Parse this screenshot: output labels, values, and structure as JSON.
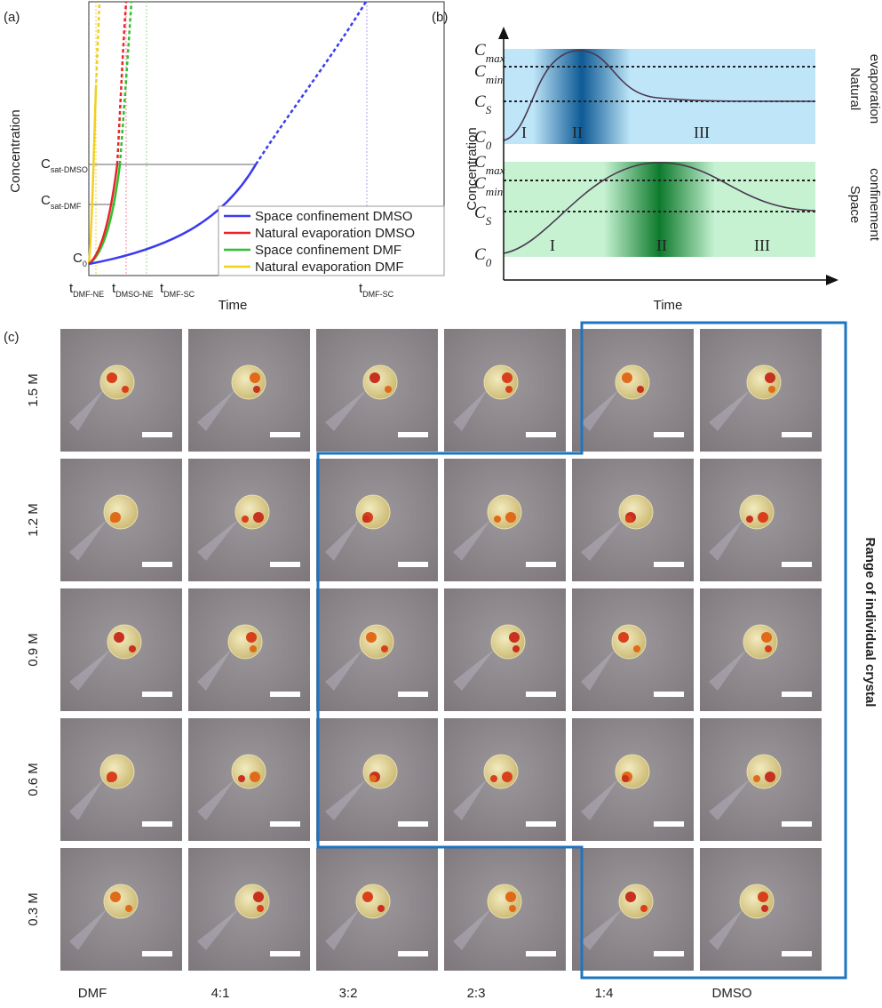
{
  "panel_a": {
    "label": "(a)",
    "y_label": "Concentration",
    "x_label": "Time",
    "y_ticks": [
      {
        "main": "C",
        "sub": "sat-DMSO"
      },
      {
        "main": "C",
        "sub": "sat-DMF"
      },
      {
        "main": "C",
        "sub": "0"
      }
    ],
    "x_ticks": [
      {
        "main": "t",
        "sub": "DMF-NE"
      },
      {
        "main": "t",
        "sub": "DMSO-NE"
      },
      {
        "main": "t",
        "sub": "DMF-SC"
      },
      {
        "main": "t",
        "sub": "DMF-SC"
      }
    ],
    "legend": [
      {
        "name": "Space confinement DMSO",
        "color": "#3b3bf0"
      },
      {
        "name": "Natural evaporation DMSO",
        "color": "#e8242a"
      },
      {
        "name": "Space confinement DMF",
        "color": "#2fc02f"
      },
      {
        "name": "Natural evaporation DMF",
        "color": "#f0d020"
      }
    ]
  },
  "panel_b": {
    "label": "(b)",
    "y_label": "Concentration",
    "x_label": "Time",
    "levels_top": [
      {
        "main": "C",
        "sub": "max"
      },
      {
        "main": "C",
        "sub": "min"
      },
      {
        "main": "C",
        "sub": "S"
      },
      {
        "main": "C",
        "sub": "0"
      }
    ],
    "levels_bottom": [
      {
        "main": "C",
        "sub": "max"
      },
      {
        "main": "C",
        "sub": "min"
      },
      {
        "main": "C",
        "sub": "S"
      },
      {
        "main": "C",
        "sub": "0"
      }
    ],
    "stages_top": [
      "I",
      "II",
      "III"
    ],
    "stages_bottom": [
      "I",
      "II",
      "III"
    ],
    "side_top": [
      "Natural",
      "evaporation"
    ],
    "side_bottom": [
      "Space",
      "confinement"
    ]
  },
  "panel_c": {
    "label": "(c)",
    "rows": [
      "1.5 M",
      "1.2 M",
      "0.9 M",
      "0.6 M",
      "0.3 M"
    ],
    "columns": [
      "DMF",
      "4:1",
      "3:2",
      "2:3",
      "1:4",
      "DMSO"
    ],
    "annotation": "Range of individual crystal"
  }
}
